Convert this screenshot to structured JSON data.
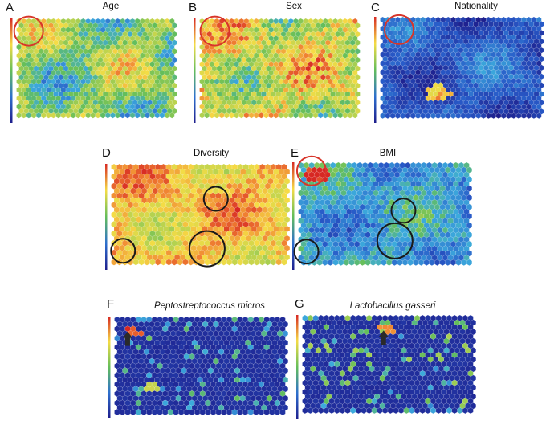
{
  "panels": [
    {
      "letter": "A",
      "title": "Age",
      "italic": false,
      "scheme": "mixed",
      "circles": {
        "red": [
          [
            0.08,
            0.12
          ]
        ],
        "black": []
      }
    },
    {
      "letter": "B",
      "title": "Sex",
      "italic": false,
      "scheme": "warm",
      "circles": {
        "red": [
          [
            0.1,
            0.12
          ]
        ],
        "black": []
      }
    },
    {
      "letter": "C",
      "title": "Nationality",
      "italic": false,
      "scheme": "cool",
      "circles": {
        "red": [
          [
            0.12,
            0.12
          ]
        ],
        "black": []
      }
    },
    {
      "letter": "D",
      "title": "Diversity",
      "italic": false,
      "scheme": "hot",
      "circles": {
        "red": [],
        "black": [
          [
            0.6,
            0.33
          ],
          [
            0.07,
            0.82
          ],
          [
            0.55,
            0.8
          ]
        ]
      }
    },
    {
      "letter": "E",
      "title": "BMI",
      "italic": false,
      "scheme": "bmi",
      "circles": {
        "red": [
          [
            0.08,
            0.08
          ]
        ],
        "black": [
          [
            0.62,
            0.45
          ],
          [
            0.05,
            0.83
          ],
          [
            0.57,
            0.73
          ]
        ]
      }
    },
    {
      "letter": "F",
      "title": "Peptostreptococcus micros",
      "italic": true,
      "scheme": "sparse",
      "circles": {
        "red": [],
        "black": []
      }
    },
    {
      "letter": "G",
      "title": "Lactobacillus gasseri",
      "italic": true,
      "scheme": "sparse2",
      "circles": {
        "red": [],
        "black": []
      }
    }
  ]
}
